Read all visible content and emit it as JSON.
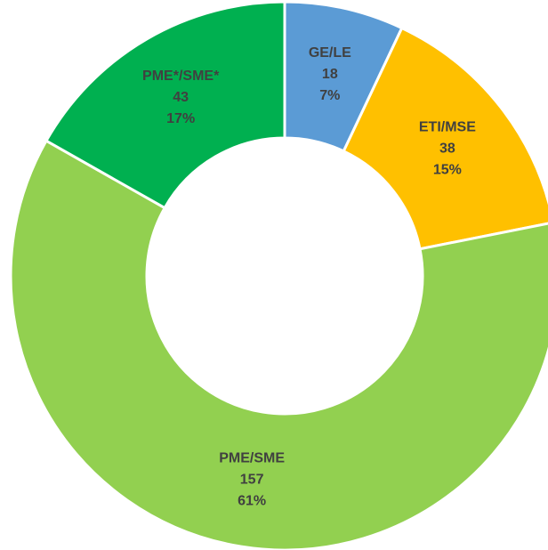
{
  "chart_data": {
    "type": "donut",
    "categories": [
      "GE/LE",
      "ETI/MSE",
      "PME/SME",
      "PME*/SME*"
    ],
    "values": [
      18,
      38,
      157,
      43
    ],
    "percent_labels": [
      "7%",
      "15%",
      "61%",
      "17%"
    ],
    "colors": [
      "#5b9bd5",
      "#ffc000",
      "#92d050",
      "#00b050"
    ]
  }
}
